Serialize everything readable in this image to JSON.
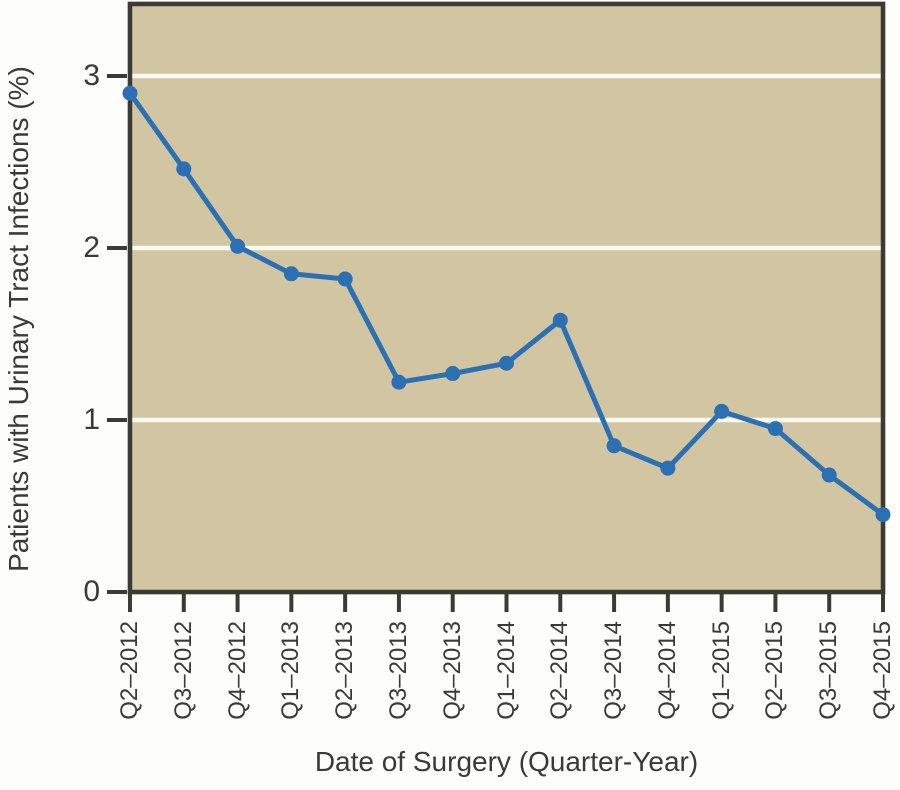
{
  "chart_data": {
    "type": "line",
    "title": "",
    "xlabel": "Date of Surgery (Quarter-Year)",
    "ylabel": "Patients with Urinary Tract Infections (%)",
    "categories": [
      "Q2–2012",
      "Q3–2012",
      "Q4–2012",
      "Q1–2013",
      "Q2–2013",
      "Q3–2013",
      "Q4–2013",
      "Q1–2014",
      "Q2–2014",
      "Q3–2014",
      "Q4–2014",
      "Q1–2015",
      "Q2–2015",
      "Q3–2015",
      "Q4–2015"
    ],
    "series": [
      {
        "name": "Patients with Urinary Tract Infections (%)",
        "values": [
          2.9,
          2.46,
          2.01,
          1.85,
          1.82,
          1.22,
          1.27,
          1.33,
          1.58,
          0.85,
          0.72,
          1.05,
          0.95,
          0.68,
          0.45
        ]
      }
    ],
    "yticks": [
      0,
      1,
      2,
      3
    ],
    "ylim": [
      0,
      3.42
    ],
    "grid": "horizontal gridlines at y = 1, 2, 3",
    "legend": "none",
    "marker": "filled-circle",
    "colors": {
      "line": "#2c70b4",
      "marker": "#2c70b4",
      "plot_background": "#d2c5a1",
      "gridline": "#fbfaf0",
      "axis": "#3a3a36",
      "text": "#3a3a38",
      "figure_background": "#fdfdfb"
    }
  }
}
